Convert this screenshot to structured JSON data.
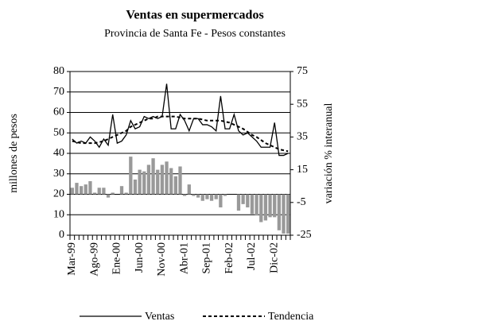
{
  "chart_data": {
    "type": "combo",
    "title": "Ventas en supermercados",
    "subtitle": "Provincia de Santa Fe - Pesos constantes",
    "y_label": "millones de pesos",
    "y2_label": "variación % interanual",
    "categories": [
      "Mar-99",
      null,
      null,
      null,
      null,
      "Ago-99",
      null,
      null,
      null,
      null,
      "Ene-00",
      null,
      null,
      null,
      null,
      "Jun-00",
      null,
      null,
      null,
      null,
      "Nov-00",
      null,
      null,
      null,
      null,
      "Abr-01",
      null,
      null,
      null,
      null,
      "Sep-01",
      null,
      null,
      null,
      null,
      "Feb-02",
      null,
      null,
      null,
      null,
      "Jul-02",
      null,
      null,
      null,
      null,
      "Dic-02",
      null,
      null,
      null
    ],
    "ylim": [
      0,
      80
    ],
    "yticks": [
      0,
      10,
      20,
      30,
      40,
      50,
      60,
      70,
      80
    ],
    "y2lim": [
      -25,
      75
    ],
    "y2ticks": [
      -25,
      -5,
      15,
      35,
      55,
      75
    ],
    "grid": true,
    "series": [
      {
        "type": "bar",
        "axis": "y2",
        "color": "#999999",
        "values": [
          4,
          7,
          5,
          6,
          8,
          1,
          4,
          4,
          -2,
          1,
          0,
          5,
          1,
          23,
          9,
          15,
          14,
          18,
          22,
          15,
          18,
          20,
          16,
          11,
          17,
          -1,
          6,
          -1,
          -2,
          -4,
          -3,
          -4,
          -3,
          -8,
          -1,
          0,
          0,
          -10,
          -6,
          -8,
          -12,
          -13,
          -17,
          -16,
          -14,
          -14,
          -22,
          -24,
          -24
        ]
      },
      {
        "type": "line",
        "name": "Ventas",
        "color": "#000000",
        "linestyle": "solid",
        "values": [
          47,
          45,
          46,
          45,
          48,
          46,
          43,
          47,
          44,
          59,
          45,
          46,
          49,
          56,
          52,
          53,
          58,
          57,
          58,
          57,
          58,
          74,
          52,
          52,
          59,
          56,
          51,
          57,
          57,
          54,
          54,
          53,
          51,
          68,
          52,
          52,
          59,
          51,
          49,
          50,
          48,
          46,
          43,
          43,
          43,
          55,
          39,
          39,
          40
        ]
      },
      {
        "type": "line",
        "name": "Tendencia",
        "color": "#000000",
        "linestyle": "dashed",
        "values": [
          46,
          45.5,
          45,
          45,
          45,
          45,
          45.5,
          46,
          47,
          48,
          49,
          50,
          51,
          53,
          54,
          55,
          56,
          57,
          57,
          58,
          58,
          58,
          58,
          58,
          57.5,
          57,
          57,
          57,
          57,
          56.5,
          56,
          56,
          56,
          56,
          55.5,
          55,
          54,
          53,
          52,
          50.5,
          49,
          48,
          46.5,
          45,
          44,
          43,
          42,
          41.5,
          41
        ]
      }
    ]
  }
}
